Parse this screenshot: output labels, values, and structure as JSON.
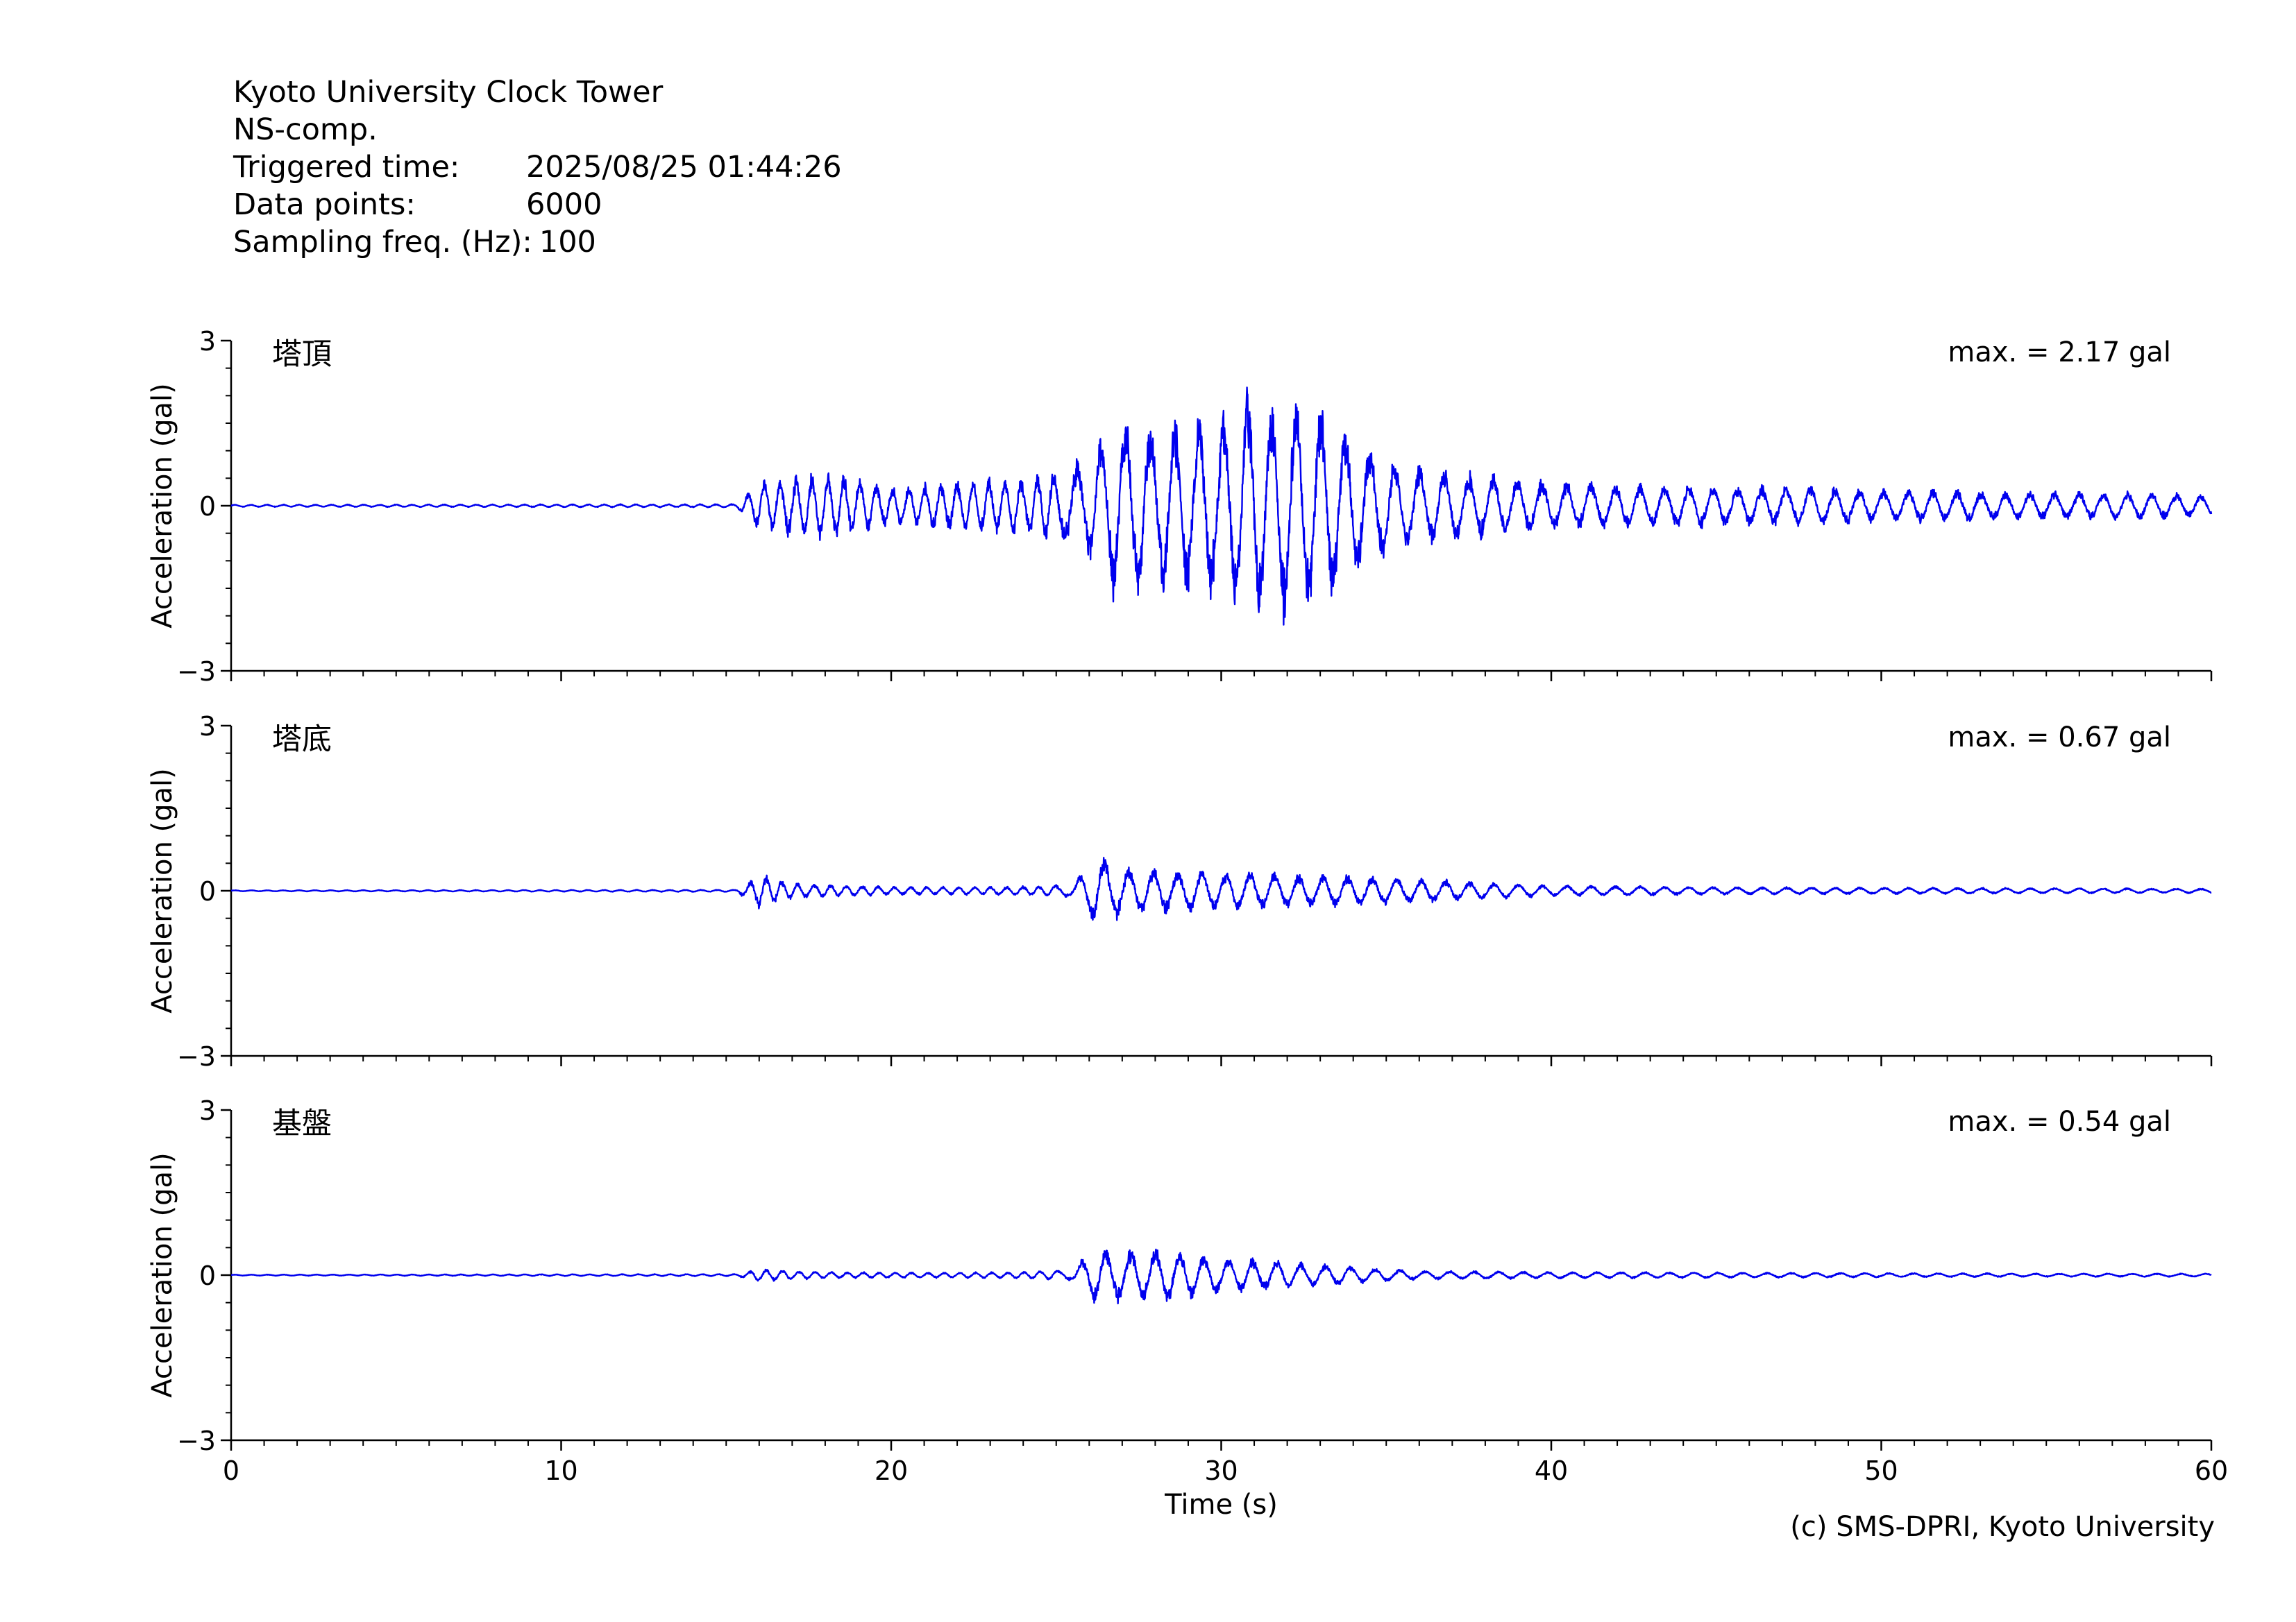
{
  "header": {
    "station": "Kyoto University Clock Tower",
    "component": "NS-comp.",
    "triggered_label": "Triggered time:",
    "triggered_value": "2025/08/25 01:44:26",
    "points_label": "Data points:",
    "points_value": "6000",
    "freq_label": "Sampling freq. (Hz):",
    "freq_value": "100"
  },
  "credit": "(c) SMS-DPRI, Kyoto University",
  "colors": {
    "trace": "#0000ee",
    "axis": "#000000",
    "background": "#ffffff"
  },
  "chart_data": [
    {
      "type": "line",
      "panel_label": "塔頂",
      "annotation": "max. = 2.17 gal",
      "ylabel": "Acceleration (gal)",
      "xlabel": "",
      "xlim": [
        0,
        60
      ],
      "ylim": [
        -3,
        3
      ],
      "yticks": [
        "3",
        "0",
        "−3"
      ],
      "xticks": [],
      "envelope": {
        "t": [
          0,
          15.3,
          16,
          17,
          18,
          19,
          20,
          21,
          22,
          23,
          24,
          25,
          26,
          26.8,
          28,
          29,
          30,
          31,
          31.6,
          32,
          33,
          34,
          35,
          36,
          37,
          38,
          39,
          40,
          42,
          44,
          46,
          48,
          50,
          52,
          54,
          56,
          58,
          60
        ],
        "amp": [
          0.02,
          0.03,
          0.45,
          0.55,
          0.6,
          0.5,
          0.35,
          0.4,
          0.45,
          0.5,
          0.55,
          0.65,
          0.9,
          1.7,
          1.5,
          1.6,
          1.6,
          2.17,
          1.8,
          2.0,
          1.8,
          1.3,
          0.9,
          0.7,
          0.65,
          0.55,
          0.5,
          0.45,
          0.4,
          0.4,
          0.35,
          0.35,
          0.3,
          0.3,
          0.25,
          0.25,
          0.25,
          0.2
        ]
      }
    },
    {
      "type": "line",
      "panel_label": "塔底",
      "annotation": "max. = 0.67 gal",
      "ylabel": "Acceleration (gal)",
      "xlabel": "",
      "xlim": [
        0,
        60
      ],
      "ylim": [
        -3,
        3
      ],
      "yticks": [
        "3",
        "0",
        "−3"
      ],
      "xticks": [],
      "envelope": {
        "t": [
          0,
          15.3,
          16,
          17,
          18,
          19,
          20,
          22,
          24,
          25.5,
          26.3,
          27,
          28,
          30,
          32,
          34,
          36,
          38,
          40,
          45,
          50,
          55,
          60
        ],
        "amp": [
          0.01,
          0.02,
          0.3,
          0.15,
          0.12,
          0.1,
          0.08,
          0.07,
          0.08,
          0.12,
          0.67,
          0.45,
          0.4,
          0.35,
          0.3,
          0.28,
          0.22,
          0.15,
          0.1,
          0.07,
          0.06,
          0.05,
          0.04
        ]
      }
    },
    {
      "type": "line",
      "panel_label": "基盤",
      "annotation": "max. = 0.54 gal",
      "ylabel": "Acceleration (gal)",
      "xlabel": "Time (s)",
      "xlim": [
        0,
        60
      ],
      "ylim": [
        -3,
        3
      ],
      "yticks": [
        "3",
        "0",
        "−3"
      ],
      "xticks": [
        "0",
        "10",
        "20",
        "30",
        "40",
        "50",
        "60"
      ],
      "envelope": {
        "t": [
          0,
          15.3,
          16,
          17,
          18,
          20,
          22,
          24,
          25.5,
          26.2,
          27,
          28.5,
          29.5,
          31,
          32,
          34,
          36,
          40,
          45,
          50,
          55,
          60
        ],
        "amp": [
          0.01,
          0.02,
          0.12,
          0.08,
          0.06,
          0.05,
          0.05,
          0.06,
          0.1,
          0.54,
          0.45,
          0.5,
          0.35,
          0.3,
          0.25,
          0.15,
          0.08,
          0.06,
          0.05,
          0.04,
          0.03,
          0.03
        ]
      }
    }
  ]
}
